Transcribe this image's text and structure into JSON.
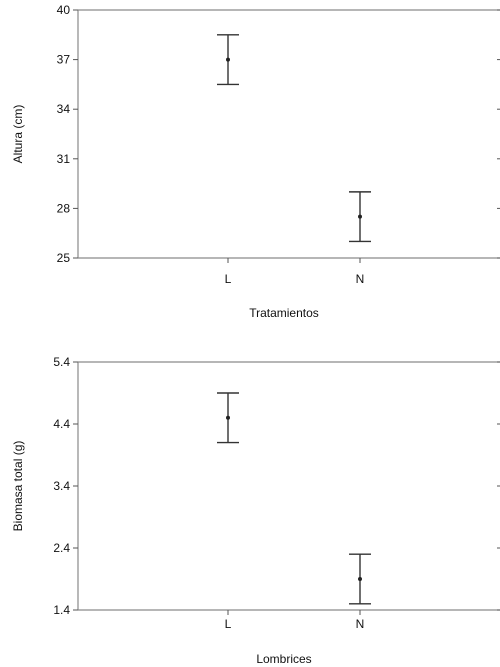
{
  "chart_data": [
    {
      "type": "scatter",
      "subtype": "means-with-error-bars",
      "title": "",
      "xlabel": "Tratamientos",
      "ylabel": "Altura (cm)",
      "categories": [
        "L",
        "N"
      ],
      "series": [
        {
          "values": [
            37.0,
            27.5
          ],
          "lower": [
            35.5,
            26.0
          ],
          "upper": [
            38.5,
            29.0
          ]
        }
      ],
      "ylim": [
        25,
        40
      ],
      "yticks": [
        25,
        28,
        31,
        34,
        37,
        40
      ],
      "ytick_labels": [
        "25",
        "28",
        "31",
        "34",
        "37",
        "40"
      ],
      "grid": false,
      "legend": "none"
    },
    {
      "type": "scatter",
      "subtype": "means-with-error-bars",
      "title": "",
      "xlabel": "Lombrices",
      "ylabel": "Biomasa total (g)",
      "categories": [
        "L",
        "N"
      ],
      "series": [
        {
          "values": [
            4.5,
            1.9
          ],
          "lower": [
            4.1,
            1.5
          ],
          "upper": [
            4.9,
            2.3
          ]
        }
      ],
      "ylim": [
        1.4,
        5.4
      ],
      "yticks": [
        1.4,
        2.4,
        3.4,
        4.4,
        5.4
      ],
      "ytick_labels": [
        "1.4",
        "2.4",
        "3.4",
        "4.4",
        "5.4"
      ],
      "grid": false,
      "legend": "none"
    }
  ]
}
